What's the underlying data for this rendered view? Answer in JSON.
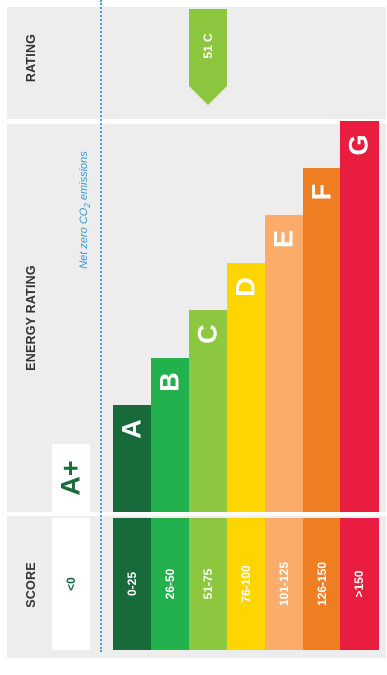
{
  "headers": {
    "rating": "RATING",
    "energy_rating": "ENERGY RATING",
    "score": "SCORE"
  },
  "annotation": {
    "net_zero_text": "Net zero CO",
    "net_zero_sub": "2",
    "net_zero_rest": " emissions"
  },
  "chart_data": {
    "type": "bar",
    "current_rating": {
      "label": "51 C",
      "score": 51,
      "band": "C",
      "color": "#8cc63f"
    },
    "special_band": {
      "letter": "A+",
      "score": "<0",
      "color": "#1b6b3a"
    },
    "bands": [
      {
        "letter": "A",
        "score": "0-25",
        "color": "#176b3a",
        "level": 1
      },
      {
        "letter": "B",
        "score": "26-50",
        "color": "#23b14d",
        "level": 2
      },
      {
        "letter": "C",
        "score": "51-75",
        "color": "#8dc63f",
        "level": 3
      },
      {
        "letter": "D",
        "score": "76-100",
        "color": "#ffd500",
        "level": 4
      },
      {
        "letter": "E",
        "score": "101-125",
        "color": "#fbac6b",
        "level": 5
      },
      {
        "letter": "F",
        "score": "126-150",
        "color": "#ef7d22",
        "level": 6
      },
      {
        "letter": "G",
        "score": ">150",
        "color": "#e91d40",
        "level": 7
      }
    ]
  }
}
